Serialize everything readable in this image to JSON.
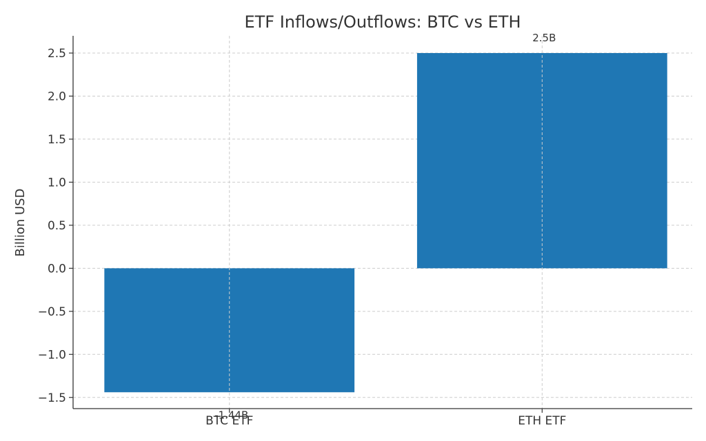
{
  "chart_data": {
    "type": "bar",
    "title": "ETF Inflows/Outflows: BTC vs ETH",
    "xlabel": "",
    "ylabel": "Billion USD",
    "categories": [
      "BTC ETF",
      "ETH ETF"
    ],
    "values": [
      -1.44,
      2.5
    ],
    "data_labels": [
      "-1.44B",
      "2.5B"
    ],
    "bar_color": "#1f77b4",
    "ylim": [
      -1.63,
      2.7
    ],
    "yticks": [
      -1.5,
      -1.0,
      -0.5,
      0.0,
      0.5,
      1.0,
      1.5,
      2.0,
      2.5
    ],
    "ytick_labels": [
      "−1.5",
      "−1.0",
      "−0.5",
      "0.0",
      "0.5",
      "1.0",
      "1.5",
      "2.0",
      "2.5"
    ],
    "grid": true,
    "legend": "none"
  }
}
